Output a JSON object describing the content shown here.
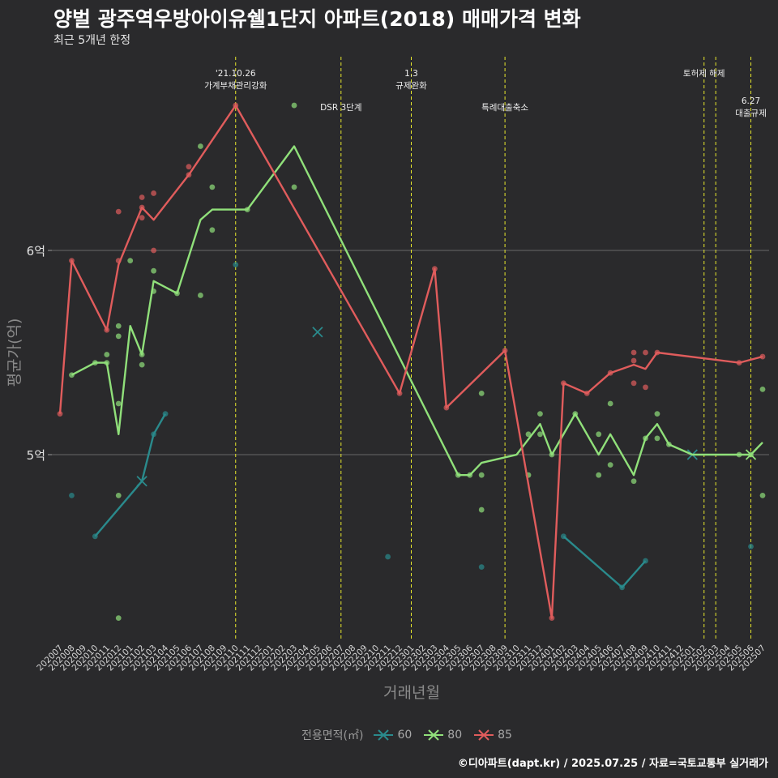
{
  "title": "양벌 광주역우방아이유쉘1단지 아파트(2018) 매매가격 변화",
  "subtitle": "최근 5개년 한정",
  "caption": "©디아파트(dapt.kr) / 2025.07.25 / 자료=국토교통부 실거래가",
  "colors": {
    "background": "#2a2a2c",
    "gridline": "#5c5c5c",
    "event_line": "#e8e82c",
    "s60": "#2a8a8c",
    "s80": "#90e07a",
    "s85": "#e05c5c"
  },
  "chart_data": {
    "type": "line",
    "xlabel": "거래년월",
    "ylabel": "평균가(억)",
    "ylim": [
      4.5,
      7.0
    ],
    "y_ticks": [
      5,
      6
    ],
    "y_tick_labels": [
      "5억",
      "6억"
    ],
    "grid": true,
    "legend_position": "bottom",
    "legend_title": "전용면적(㎡)",
    "categories": [
      "202007",
      "202008",
      "202009",
      "202010",
      "202011",
      "202012",
      "202101",
      "202102",
      "202103",
      "202104",
      "202105",
      "202106",
      "202107",
      "202108",
      "202109",
      "202110",
      "202111",
      "202112",
      "202201",
      "202202",
      "202203",
      "202204",
      "202205",
      "202206",
      "202207",
      "202208",
      "202209",
      "202210",
      "202211",
      "202212",
      "202301",
      "202302",
      "202303",
      "202304",
      "202305",
      "202306",
      "202307",
      "202308",
      "202309",
      "202310",
      "202311",
      "202312",
      "202401",
      "202402",
      "202403",
      "202404",
      "202405",
      "202406",
      "202407",
      "202408",
      "202409",
      "202410",
      "202411",
      "202412",
      "202501",
      "202502",
      "202503",
      "202504",
      "202505",
      "202506",
      "202507"
    ],
    "series": [
      {
        "name": "60",
        "line": [
          [
            "202010",
            4.6
          ],
          [
            "202102",
            4.87
          ],
          [
            "202103",
            5.1
          ],
          [
            "202104",
            5.2
          ],
          null,
          [
            "202205",
            5.6
          ],
          null,
          [
            "202402",
            4.6
          ],
          [
            "202407",
            4.35
          ],
          [
            "202409",
            4.48
          ],
          null,
          [
            "202501",
            5.0
          ]
        ],
        "points": [
          [
            "202008",
            4.8
          ],
          [
            "202010",
            4.6
          ],
          [
            "202103",
            5.1
          ],
          [
            "202104",
            5.2
          ],
          [
            "202110",
            5.93
          ],
          [
            "202211",
            4.5
          ],
          [
            "202307",
            4.45
          ],
          [
            "202402",
            4.6
          ],
          [
            "202407",
            4.35
          ],
          [
            "202409",
            4.48
          ],
          [
            "202506",
            4.55
          ]
        ],
        "x_marks": [
          [
            "202102",
            4.87
          ],
          [
            "202205",
            5.6
          ],
          [
            "202501",
            5.0
          ]
        ]
      },
      {
        "name": "80",
        "line": [
          [
            "202008",
            5.39
          ],
          [
            "202010",
            5.45
          ],
          [
            "202011",
            5.45
          ],
          [
            "202012",
            5.1
          ],
          [
            "202101",
            5.63
          ],
          [
            "202102",
            5.49
          ],
          [
            "202103",
            5.85
          ],
          [
            "202105",
            5.79
          ],
          [
            "202107",
            6.15
          ],
          [
            "202108",
            6.2
          ],
          [
            "202111",
            6.2
          ],
          [
            "202203",
            6.51
          ],
          [
            "202305",
            4.9
          ],
          [
            "202306",
            4.9
          ],
          [
            "202307",
            4.96
          ],
          [
            "202310",
            5.0
          ],
          [
            "202312",
            5.15
          ],
          [
            "202401",
            5.0
          ],
          [
            "202403",
            5.2
          ],
          [
            "202405",
            5.0
          ],
          [
            "202406",
            5.1
          ],
          [
            "202408",
            4.9
          ],
          [
            "202409",
            5.08
          ],
          [
            "202410",
            5.15
          ],
          [
            "202411",
            5.05
          ],
          [
            "202501",
            5.0
          ],
          [
            "202506",
            5.0
          ],
          [
            "202507",
            5.06
          ]
        ],
        "points": [
          [
            "202008",
            5.39
          ],
          [
            "202010",
            5.45
          ],
          [
            "202011",
            5.45
          ],
          [
            "202011",
            5.49
          ],
          [
            "202012",
            5.25
          ],
          [
            "202012",
            5.58
          ],
          [
            "202012",
            5.63
          ],
          [
            "202012",
            4.8
          ],
          [
            "202012",
            4.2
          ],
          [
            "202101",
            5.95
          ],
          [
            "202102",
            5.44
          ],
          [
            "202102",
            5.49
          ],
          [
            "202103",
            5.8
          ],
          [
            "202103",
            5.9
          ],
          [
            "202105",
            5.79
          ],
          [
            "202107",
            5.78
          ],
          [
            "202107",
            6.51
          ],
          [
            "202108",
            6.1
          ],
          [
            "202108",
            6.31
          ],
          [
            "202111",
            6.2
          ],
          [
            "202203",
            6.31
          ],
          [
            "202203",
            6.71
          ],
          [
            "202305",
            4.9
          ],
          [
            "202306",
            4.9
          ],
          [
            "202307",
            5.3
          ],
          [
            "202307",
            4.9
          ],
          [
            "202307",
            4.73
          ],
          [
            "202311",
            4.9
          ],
          [
            "202311",
            5.1
          ],
          [
            "202312",
            5.1
          ],
          [
            "202312",
            5.2
          ],
          [
            "202401",
            5.0
          ],
          [
            "202403",
            5.2
          ],
          [
            "202405",
            5.1
          ],
          [
            "202405",
            4.9
          ],
          [
            "202406",
            5.25
          ],
          [
            "202406",
            4.95
          ],
          [
            "202408",
            4.87
          ],
          [
            "202409",
            5.08
          ],
          [
            "202410",
            5.08
          ],
          [
            "202410",
            5.2
          ],
          [
            "202411",
            5.05
          ],
          [
            "202505",
            5.0
          ],
          [
            "202506",
            5.0
          ],
          [
            "202507",
            5.32
          ],
          [
            "202507",
            4.8
          ]
        ],
        "x_marks": [
          [
            "202506",
            5.0
          ]
        ]
      },
      {
        "name": "85",
        "line": [
          [
            "202007",
            5.2
          ],
          [
            "202008",
            5.95
          ],
          [
            "202011",
            5.61
          ],
          [
            "202012",
            5.93
          ],
          [
            "202102",
            6.21
          ],
          [
            "202103",
            6.15
          ],
          [
            "202106",
            6.37
          ],
          [
            "202110",
            6.71
          ],
          [
            "202212",
            5.3
          ],
          [
            "202303",
            5.91
          ],
          [
            "202304",
            5.23
          ],
          [
            "202309",
            5.51
          ],
          [
            "202401",
            4.2
          ],
          [
            "202402",
            5.35
          ],
          [
            "202404",
            5.3
          ],
          [
            "202406",
            5.4
          ],
          [
            "202408",
            5.44
          ],
          [
            "202409",
            5.42
          ],
          [
            "202410",
            5.5
          ],
          [
            "202505",
            5.45
          ],
          [
            "202507",
            5.48
          ]
        ],
        "points": [
          [
            "202007",
            5.2
          ],
          [
            "202008",
            5.95
          ],
          [
            "202011",
            5.61
          ],
          [
            "202012",
            5.95
          ],
          [
            "202012",
            6.19
          ],
          [
            "202102",
            6.21
          ],
          [
            "202102",
            6.16
          ],
          [
            "202102",
            6.26
          ],
          [
            "202103",
            6.28
          ],
          [
            "202103",
            6.0
          ],
          [
            "202106",
            6.37
          ],
          [
            "202106",
            6.41
          ],
          [
            "202110",
            6.71
          ],
          [
            "202212",
            5.3
          ],
          [
            "202303",
            5.91
          ],
          [
            "202304",
            5.23
          ],
          [
            "202309",
            5.51
          ],
          [
            "202401",
            4.2
          ],
          [
            "202402",
            5.35
          ],
          [
            "202404",
            5.3
          ],
          [
            "202406",
            5.4
          ],
          [
            "202408",
            5.46
          ],
          [
            "202408",
            5.5
          ],
          [
            "202408",
            5.35
          ],
          [
            "202409",
            5.5
          ],
          [
            "202409",
            5.33
          ],
          [
            "202410",
            5.5
          ],
          [
            "202505",
            5.45
          ],
          [
            "202507",
            5.48
          ]
        ],
        "x_marks": []
      }
    ],
    "events": [
      {
        "x": "202110",
        "lines": [
          "'21.10.26",
          "가계부채관리강화"
        ],
        "row": 0
      },
      {
        "x": "202207",
        "lines": [
          "DSR 3단계"
        ],
        "row": 1
      },
      {
        "x": "202301",
        "lines": [
          "1.3",
          "규제완화"
        ],
        "row": 0
      },
      {
        "x": "202309",
        "lines": [
          "특례대출축소"
        ],
        "row": 1
      },
      {
        "x": "202502",
        "lines": [
          "토허제 해제"
        ],
        "row": 0
      },
      {
        "x": "202503",
        "lines": [],
        "row": 0
      },
      {
        "x": "202506",
        "lines": [
          "6.27",
          "대출규제"
        ],
        "row": 2
      }
    ]
  }
}
